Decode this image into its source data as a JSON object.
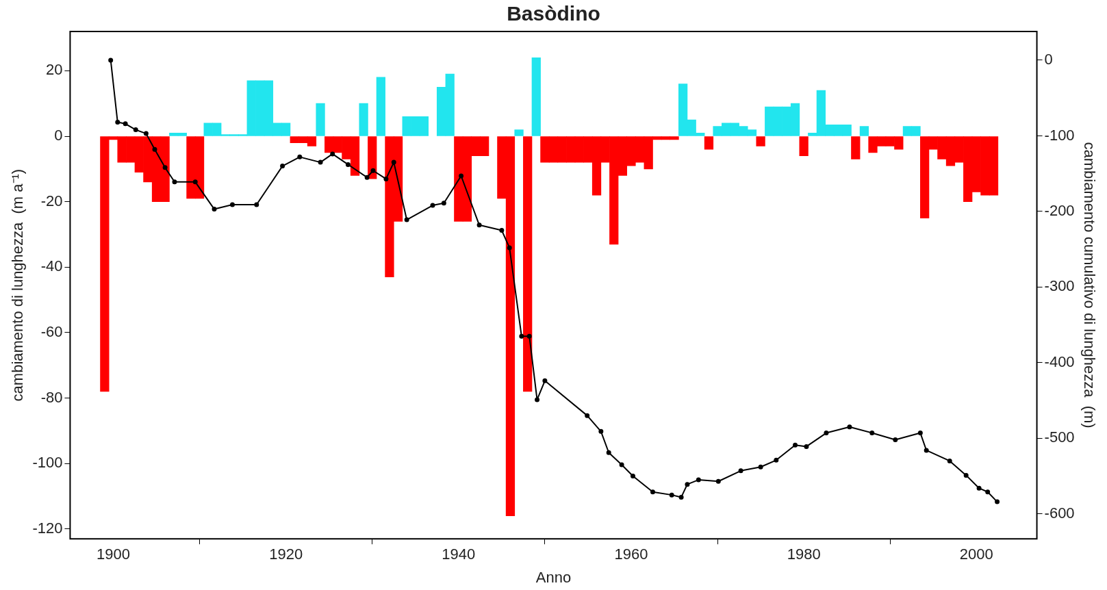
{
  "chart_data": {
    "type": "bar",
    "title": "Basòdino",
    "xlabel": "Anno",
    "ylabel": "cambiamento di lunghezza  (m a⁻¹)",
    "y2label": "cambiamento cumulativo di lunghezza  (m)",
    "x": [
      1899,
      1900,
      1901,
      1902,
      1903,
      1904,
      1905,
      1906,
      1907,
      1908,
      1909,
      1910,
      1911,
      1912,
      1913,
      1914,
      1915,
      1916,
      1917,
      1918,
      1919,
      1920,
      1921,
      1922,
      1923,
      1924,
      1925,
      1926,
      1927,
      1928,
      1929,
      1930,
      1931,
      1932,
      1933,
      1934,
      1935,
      1936,
      1937,
      1938,
      1939,
      1940,
      1941,
      1942,
      1943,
      1944,
      1945,
      1946,
      1947,
      1948,
      1949,
      1950,
      1951,
      1952,
      1953,
      1954,
      1955,
      1956,
      1957,
      1958,
      1959,
      1960,
      1961,
      1962,
      1963,
      1964,
      1965,
      1966,
      1967,
      1968,
      1969,
      1970,
      1971,
      1972,
      1973,
      1974,
      1975,
      1976,
      1977,
      1978,
      1979,
      1980,
      1981,
      1982,
      1983,
      1984,
      1985,
      1986,
      1987,
      1988,
      1989,
      1990,
      1991,
      1992,
      1993,
      1994,
      1995,
      1996,
      1997,
      1998,
      1999,
      2000,
      2001,
      2002
    ],
    "xlim": [
      1895,
      2007
    ],
    "xticks": [
      1900,
      1920,
      1940,
      1960,
      1980,
      2000
    ],
    "ylim": [
      -123,
      32
    ],
    "yticks": [
      -120,
      -100,
      -80,
      -60,
      -40,
      -20,
      0,
      20
    ],
    "y2lim": [
      -633,
      38
    ],
    "y2ticks": [
      -600,
      -500,
      -400,
      -300,
      -200,
      -100,
      0
    ],
    "marker": "circle",
    "series": [
      {
        "values": [
          -78,
          -1,
          -8,
          -8,
          -11,
          -14,
          -20,
          -20,
          1,
          1,
          -19,
          -19,
          4,
          4,
          0.5,
          0.5,
          0.5,
          17,
          17,
          17,
          4,
          4,
          -2,
          -2,
          -3,
          10,
          -5,
          -5,
          -7,
          -12,
          10,
          -13,
          18,
          -43,
          -26,
          6,
          6,
          6,
          null,
          15,
          19,
          -26,
          -26,
          -6,
          -6,
          null,
          -19,
          -116,
          2,
          -78,
          24,
          -8,
          -8,
          -8,
          -8,
          -8,
          -8,
          -18,
          -8,
          -33,
          -12,
          -9,
          -8,
          -10,
          -1,
          -1,
          -1,
          16,
          5,
          1,
          -4,
          3,
          4,
          4,
          3,
          2,
          -3,
          9,
          9,
          9,
          10,
          -6,
          1,
          14,
          3.5,
          3.5,
          3.5,
          -7,
          3,
          -5,
          -3,
          -3,
          -4,
          3,
          3,
          -25,
          -4,
          -7,
          -9,
          -8,
          -20,
          -17,
          -18,
          -18
        ],
        "colors": [
          "#ff0000",
          "#ff0000",
          "#ff0000",
          "#ff0000",
          "#ff0000",
          "#ff0000",
          "#ff0000",
          "#ff0000",
          "#22e5ee",
          "#22e5ee",
          "#ff0000",
          "#ff0000",
          "#22e5ee",
          "#22e5ee",
          "#22e5ee",
          "#22e5ee",
          "#22e5ee",
          "#22e5ee",
          "#22e5ee",
          "#22e5ee",
          "#22e5ee",
          "#22e5ee",
          "#ff0000",
          "#ff0000",
          "#ff0000",
          "#22e5ee",
          "#ff0000",
          "#ff0000",
          "#ff0000",
          "#ff0000",
          "#22e5ee",
          "#ff0000",
          "#22e5ee",
          "#ff0000",
          "#ff0000",
          "#22e5ee",
          "#22e5ee",
          "#22e5ee",
          "#22e5ee",
          "#22e5ee",
          "#22e5ee",
          "#ff0000",
          "#ff0000",
          "#ff0000",
          "#ff0000",
          "#ff0000",
          "#ff0000",
          "#ff0000",
          "#22e5ee",
          "#ff0000",
          "#22e5ee",
          "#ff0000",
          "#ff0000",
          "#ff0000",
          "#ff0000",
          "#ff0000",
          "#ff0000",
          "#ff0000",
          "#ff0000",
          "#ff0000",
          "#ff0000",
          "#ff0000",
          "#ff0000",
          "#ff0000",
          "#ff0000",
          "#ff0000",
          "#ff0000",
          "#22e5ee",
          "#22e5ee",
          "#22e5ee",
          "#ff0000",
          "#22e5ee",
          "#22e5ee",
          "#22e5ee",
          "#22e5ee",
          "#22e5ee",
          "#ff0000",
          "#22e5ee",
          "#22e5ee",
          "#22e5ee",
          "#22e5ee",
          "#ff0000",
          "#22e5ee",
          "#22e5ee",
          "#22e5ee",
          "#22e5ee",
          "#22e5ee",
          "#ff0000",
          "#22e5ee",
          "#ff0000",
          "#ff0000",
          "#ff0000",
          "#ff0000",
          "#22e5ee",
          "#22e5ee",
          "#ff0000",
          "#ff0000",
          "#ff0000",
          "#ff0000",
          "#ff0000",
          "#ff0000",
          "#ff0000",
          "#ff0000",
          "#ff0000"
        ]
      },
      {
        "type": "line",
        "axis": "y2",
        "color": "#000000",
        "x": [
          1899.7,
          1900.5,
          1901.4,
          1902.6,
          1903.8,
          1904.8,
          1906,
          1907.1,
          1909.5,
          1911.7,
          1913.8,
          1916.6,
          1919.6,
          1921.6,
          1924,
          1925.4,
          1927.2,
          1929.4,
          1930.1,
          1931.6,
          1932.5,
          1934,
          1937,
          1938.3,
          1940.3,
          1942.4,
          1945,
          1945.9,
          1947.3,
          1948.2,
          1949.1,
          1950,
          1954.9,
          1956.5,
          1957.4,
          1958.9,
          1960.2,
          1962.5,
          1964.7,
          1965.8,
          1966.5,
          1967.8,
          1970.1,
          1972.7,
          1975,
          1976.8,
          1979,
          1980.3,
          1982.6,
          1985.3,
          1987.9,
          1990.6,
          1993.5,
          1994.2,
          1996.9,
          1998.8,
          2000.3,
          2001.3,
          2002.4
        ],
        "values": [
          0,
          -82,
          -84,
          -92,
          -97,
          -118,
          -142,
          -161,
          -161,
          -197,
          -191,
          -191,
          -140,
          -128,
          -135,
          -124,
          -138,
          -155,
          -146,
          -157,
          -135,
          -211,
          -192,
          -189,
          -153,
          -218,
          -225,
          -248,
          -365,
          -365,
          -449,
          -424,
          -470,
          -491,
          -519,
          -535,
          -550,
          -571,
          -575,
          -578,
          -561,
          -555,
          -557,
          -543,
          -538,
          -529,
          -509,
          -511,
          -493,
          -485,
          -493,
          -502,
          -493,
          -516,
          -530,
          -549,
          -566,
          -571,
          -584
        ]
      }
    ]
  }
}
